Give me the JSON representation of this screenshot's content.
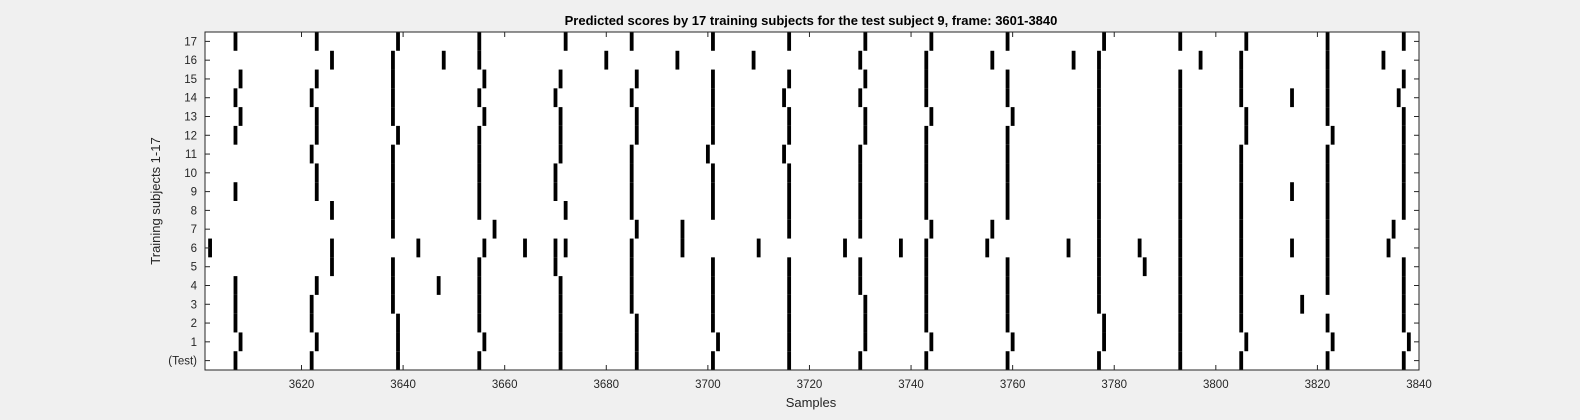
{
  "chart_data": {
    "type": "event-raster",
    "title": "Predicted scores by 17 training subjects for the test subject 9, frame: 3601-3840",
    "xlabel": "Samples",
    "ylabel": "Training subjects 1-17",
    "xlim": [
      3601,
      3840
    ],
    "x_ticks": [
      3620,
      3640,
      3660,
      3680,
      3700,
      3720,
      3740,
      3760,
      3780,
      3800,
      3820,
      3840
    ],
    "y_tick_labels": [
      "(Test)",
      "1",
      "2",
      "3",
      "4",
      "5",
      "6",
      "7",
      "8",
      "9",
      "10",
      "11",
      "12",
      "13",
      "14",
      "15",
      "16",
      "17"
    ],
    "grid": false,
    "background": "#ffffff",
    "mark_color": "#000000",
    "rows": [
      {
        "label": "(Test)",
        "events": [
          3607,
          3622,
          3639,
          3655,
          3671,
          3686,
          3701,
          3716,
          3730,
          3743,
          3759,
          3777,
          3793,
          3805,
          3822,
          3837
        ]
      },
      {
        "label": "1",
        "events": [
          3608,
          3623,
          3639,
          3656,
          3671,
          3686,
          3702,
          3716,
          3731,
          3744,
          3760,
          3778,
          3793,
          3806,
          3823,
          3838
        ]
      },
      {
        "label": "2",
        "events": [
          3607,
          3622,
          3639,
          3655,
          3671,
          3686,
          3701,
          3716,
          3731,
          3743,
          3759,
          3778,
          3793,
          3805,
          3822,
          3837
        ]
      },
      {
        "label": "3",
        "events": [
          3607,
          3622,
          3638,
          3655,
          3671,
          3685,
          3701,
          3716,
          3731,
          3743,
          3759,
          3777,
          3793,
          3805,
          3817,
          3837
        ]
      },
      {
        "label": "4",
        "events": [
          3607,
          3623,
          3638,
          3647,
          3655,
          3671,
          3685,
          3701,
          3716,
          3730,
          3743,
          3759,
          3777,
          3793,
          3805,
          3822,
          3837
        ]
      },
      {
        "label": "5",
        "events": [
          3626,
          3638,
          3655,
          3670,
          3685,
          3701,
          3716,
          3730,
          3743,
          3759,
          3777,
          3786,
          3793,
          3805,
          3822,
          3837
        ]
      },
      {
        "label": "6",
        "events": [
          3602,
          3626,
          3643,
          3656,
          3664,
          3670,
          3672,
          3685,
          3695,
          3710,
          3727,
          3738,
          3743,
          3755,
          3771,
          3777,
          3785,
          3793,
          3805,
          3815,
          3822,
          3834
        ]
      },
      {
        "label": "7",
        "events": [
          3638,
          3658,
          3686,
          3695,
          3716,
          3730,
          3744,
          3756,
          3777,
          3793,
          3805,
          3822,
          3835
        ]
      },
      {
        "label": "8",
        "events": [
          3626,
          3638,
          3655,
          3672,
          3685,
          3701,
          3716,
          3730,
          3743,
          3759,
          3777,
          3793,
          3805,
          3822,
          3837
        ]
      },
      {
        "label": "9",
        "events": [
          3607,
          3623,
          3638,
          3655,
          3670,
          3685,
          3701,
          3716,
          3730,
          3743,
          3759,
          3777,
          3793,
          3805,
          3815,
          3822,
          3837
        ]
      },
      {
        "label": "10",
        "events": [
          3623,
          3638,
          3655,
          3670,
          3685,
          3701,
          3716,
          3730,
          3743,
          3759,
          3777,
          3793,
          3805,
          3822,
          3837
        ]
      },
      {
        "label": "11",
        "events": [
          3622,
          3638,
          3655,
          3671,
          3685,
          3700,
          3715,
          3730,
          3743,
          3759,
          3777,
          3793,
          3805,
          3822,
          3837
        ]
      },
      {
        "label": "12",
        "events": [
          3607,
          3623,
          3639,
          3655,
          3671,
          3686,
          3701,
          3716,
          3731,
          3743,
          3759,
          3777,
          3793,
          3806,
          3823,
          3837
        ]
      },
      {
        "label": "13",
        "events": [
          3608,
          3623,
          3638,
          3656,
          3671,
          3686,
          3701,
          3716,
          3731,
          3744,
          3760,
          3777,
          3793,
          3806,
          3822,
          3837
        ]
      },
      {
        "label": "14",
        "events": [
          3607,
          3622,
          3638,
          3655,
          3670,
          3685,
          3701,
          3715,
          3730,
          3743,
          3759,
          3777,
          3793,
          3805,
          3815,
          3822,
          3836
        ]
      },
      {
        "label": "15",
        "events": [
          3608,
          3623,
          3638,
          3656,
          3671,
          3686,
          3701,
          3716,
          3731,
          3743,
          3759,
          3777,
          3793,
          3805,
          3822,
          3837
        ]
      },
      {
        "label": "16",
        "events": [
          3626,
          3638,
          3648,
          3655,
          3680,
          3694,
          3709,
          3730,
          3743,
          3756,
          3772,
          3777,
          3797,
          3805,
          3822,
          3833
        ]
      },
      {
        "label": "17",
        "events": [
          3607,
          3623,
          3639,
          3655,
          3672,
          3685,
          3701,
          3716,
          3731,
          3744,
          3759,
          3778,
          3793,
          3806,
          3822,
          3837
        ]
      }
    ]
  }
}
